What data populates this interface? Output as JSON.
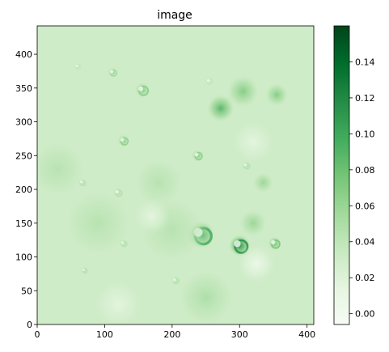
{
  "chart_data": {
    "type": "heatmap",
    "title": "image",
    "xlabel": "",
    "ylabel": "",
    "x_range": [
      0,
      410
    ],
    "y_range": [
      0,
      442
    ],
    "x_ticks": [
      0,
      100,
      200,
      300,
      400
    ],
    "y_ticks": [
      0,
      50,
      100,
      150,
      200,
      250,
      300,
      350,
      400
    ],
    "x_tick_labels": [
      "0",
      "100",
      "200",
      "300",
      "400"
    ],
    "y_tick_labels": [
      "0",
      "50",
      "100",
      "150",
      "200",
      "250",
      "300",
      "350",
      "400"
    ],
    "grid": false,
    "colormap": "Greens",
    "colormap_stops": [
      "#f7fcf5",
      "#e5f5e0",
      "#c7e9c0",
      "#a1d99b",
      "#74c476",
      "#41ab5d",
      "#238b45",
      "#006d2c",
      "#00441b"
    ],
    "colorbar": {
      "min": -0.006,
      "max": 0.16,
      "ticks": [
        0.0,
        0.02,
        0.04,
        0.06,
        0.08,
        0.1,
        0.12,
        0.14
      ],
      "tick_labels": [
        "0.00",
        "0.02",
        "0.04",
        "0.06",
        "0.08",
        "0.10",
        "0.12",
        "0.14"
      ]
    },
    "background_level": 0.03,
    "features": [
      {
        "kind": "crater",
        "x": 243,
        "y": 133,
        "r": 18,
        "peak": 0.1
      },
      {
        "kind": "crater",
        "x": 300,
        "y": 117,
        "r": 14,
        "peak": 0.12
      },
      {
        "kind": "crater",
        "x": 352,
        "y": 120,
        "r": 9,
        "peak": 0.08
      },
      {
        "kind": "crater",
        "x": 156,
        "y": 347,
        "r": 10,
        "peak": 0.07
      },
      {
        "kind": "crater",
        "x": 112,
        "y": 373,
        "r": 7,
        "peak": 0.06
      },
      {
        "kind": "crater",
        "x": 60,
        "y": 382,
        "r": 5,
        "peak": 0.04
      },
      {
        "kind": "crater",
        "x": 128,
        "y": 272,
        "r": 8,
        "peak": 0.07
      },
      {
        "kind": "crater",
        "x": 238,
        "y": 250,
        "r": 8,
        "peak": 0.07
      },
      {
        "kind": "crater",
        "x": 128,
        "y": 120,
        "r": 6,
        "peak": 0.05
      },
      {
        "kind": "crater",
        "x": 205,
        "y": 65,
        "r": 6,
        "peak": 0.05
      },
      {
        "kind": "crater",
        "x": 67,
        "y": 210,
        "r": 6,
        "peak": 0.05
      },
      {
        "kind": "crater",
        "x": 120,
        "y": 195,
        "r": 7,
        "peak": 0.05
      },
      {
        "kind": "crater",
        "x": 70,
        "y": 80,
        "r": 5,
        "peak": 0.05
      },
      {
        "kind": "crater",
        "x": 255,
        "y": 360,
        "r": 6,
        "peak": 0.04
      },
      {
        "kind": "crater",
        "x": 310,
        "y": 235,
        "r": 6,
        "peak": 0.05
      },
      {
        "kind": "ridge",
        "x": 272,
        "y": 320,
        "r": 12,
        "peak": 0.09
      },
      {
        "kind": "ridge",
        "x": 305,
        "y": 345,
        "r": 14,
        "peak": 0.07
      },
      {
        "kind": "ridge",
        "x": 355,
        "y": 340,
        "r": 10,
        "peak": 0.07
      },
      {
        "kind": "ridge",
        "x": 335,
        "y": 210,
        "r": 9,
        "peak": 0.06
      },
      {
        "kind": "ridge",
        "x": 320,
        "y": 150,
        "r": 12,
        "peak": 0.06
      },
      {
        "kind": "ridge",
        "x": 180,
        "y": 210,
        "r": 22,
        "peak": 0.045
      },
      {
        "kind": "ridge",
        "x": 90,
        "y": 150,
        "r": 30,
        "peak": 0.045
      },
      {
        "kind": "ridge",
        "x": 200,
        "y": 140,
        "r": 30,
        "peak": 0.045
      },
      {
        "kind": "ridge",
        "x": 250,
        "y": 40,
        "r": 25,
        "peak": 0.05
      },
      {
        "kind": "ridge",
        "x": 30,
        "y": 230,
        "r": 25,
        "peak": 0.045
      },
      {
        "kind": "bright",
        "x": 325,
        "y": 90,
        "r": 16,
        "peak": 0.005
      },
      {
        "kind": "bright",
        "x": 120,
        "y": 30,
        "r": 20,
        "peak": 0.015
      },
      {
        "kind": "bright",
        "x": 170,
        "y": 160,
        "r": 15,
        "peak": 0.015
      },
      {
        "kind": "bright",
        "x": 320,
        "y": 270,
        "r": 18,
        "peak": 0.015
      }
    ]
  }
}
